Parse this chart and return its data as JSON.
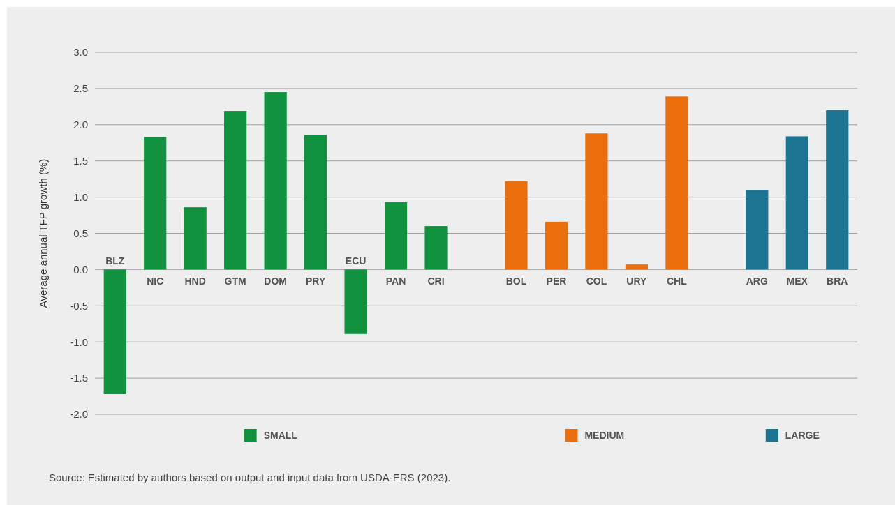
{
  "chart_data": {
    "type": "bar",
    "ylabel": "Average annual TFP growth (%)",
    "categories": [
      "BLZ",
      "NIC",
      "HND",
      "GTM",
      "DOM",
      "PRY",
      "ECU",
      "PAN",
      "CRI",
      null,
      "BOL",
      "PER",
      "COL",
      "URY",
      "CHL",
      null,
      "ARG",
      "MEX",
      "BRA"
    ],
    "series": [
      {
        "name": "SMALL",
        "color": "#10923f",
        "values": [
          -1.72,
          1.83,
          0.86,
          2.19,
          2.45,
          1.86,
          -0.89,
          0.93,
          0.6,
          null,
          null,
          null,
          null,
          null,
          null,
          null,
          null,
          null,
          null
        ]
      },
      {
        "name": "MEDIUM",
        "color": "#ec6f0d",
        "values": [
          null,
          null,
          null,
          null,
          null,
          null,
          null,
          null,
          null,
          null,
          1.22,
          0.66,
          1.88,
          0.07,
          2.39,
          null,
          null,
          null,
          null
        ]
      },
      {
        "name": "LARGE",
        "color": "#1b7592",
        "values": [
          null,
          null,
          null,
          null,
          null,
          null,
          null,
          null,
          null,
          null,
          null,
          null,
          null,
          null,
          null,
          null,
          1.1,
          1.84,
          2.2
        ]
      }
    ],
    "ylim": [
      -2,
      3
    ],
    "yticks": [
      {
        "value": -2,
        "label": "-2.0"
      },
      {
        "value": -1.5,
        "label": "-1.5"
      },
      {
        "value": -1,
        "label": "-1.0"
      },
      {
        "value": -0.5,
        "label": "-0.5"
      },
      {
        "value": 0,
        "label": "0.0"
      },
      {
        "value": 0.5,
        "label": "0.5"
      },
      {
        "value": 1,
        "label": "1.0"
      },
      {
        "value": 1.5,
        "label": "1.5"
      },
      {
        "value": 2,
        "label": "2.0"
      },
      {
        "value": 2.5,
        "label": "2.5"
      },
      {
        "value": 3,
        "label": "3.0"
      }
    ],
    "grid": "y",
    "legend": "bottom",
    "annotations": [
      "Source: Estimated by authors based on output and input data from USDA-ERS (2023)."
    ]
  }
}
